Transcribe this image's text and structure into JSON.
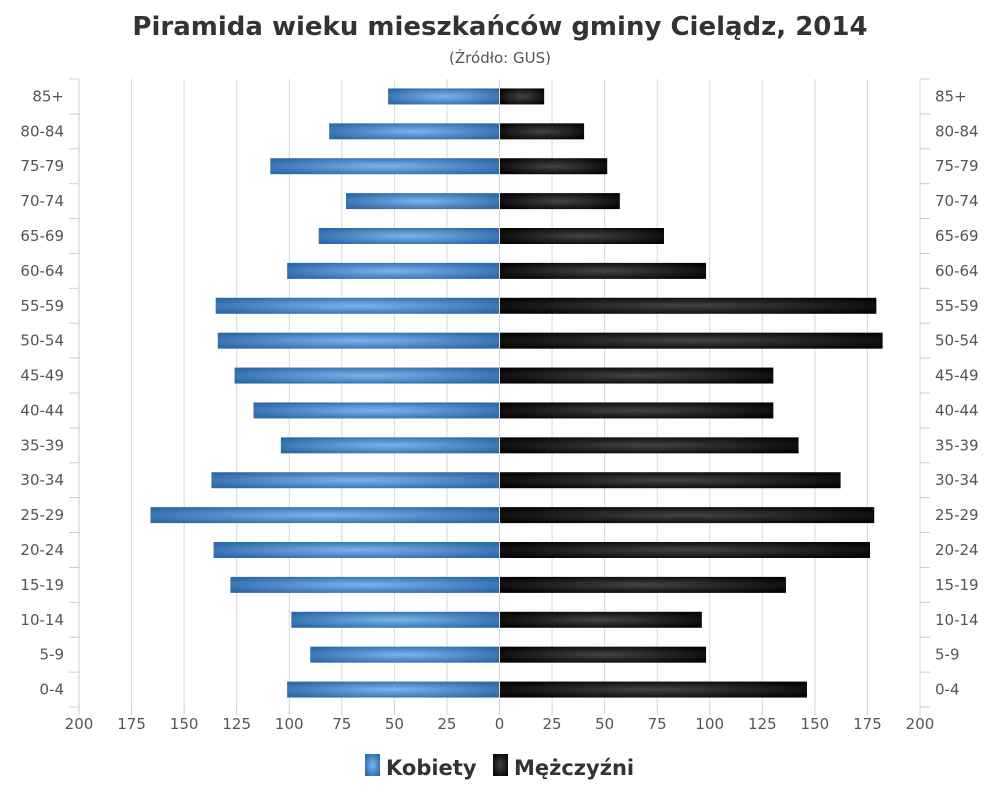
{
  "chart_data": {
    "type": "bar",
    "orientation": "horizontal-pyramid",
    "title": "Piramida wieku mieszkańców gminy Cielądz, 2014",
    "subtitle": "(Źródło: GUS)",
    "categories": [
      "85+",
      "80-84",
      "75-79",
      "70-74",
      "65-69",
      "60-64",
      "55-59",
      "50-54",
      "45-49",
      "40-44",
      "35-39",
      "30-34",
      "25-29",
      "20-24",
      "15-19",
      "10-14",
      "5-9",
      "0-4"
    ],
    "series": [
      {
        "name": "Kobiety",
        "side": "left",
        "color": "#4a8ad0",
        "values": [
          53,
          81,
          109,
          73,
          86,
          101,
          135,
          134,
          126,
          117,
          104,
          137,
          166,
          136,
          128,
          99,
          90,
          101
        ]
      },
      {
        "name": "Mężczyźni",
        "side": "right",
        "color": "#1a1a1a",
        "values": [
          21,
          40,
          51,
          57,
          78,
          98,
          179,
          182,
          130,
          130,
          142,
          162,
          178,
          176,
          136,
          96,
          98,
          146
        ]
      }
    ],
    "xlim": [
      0,
      200
    ],
    "xticks": [
      "200",
      "175",
      "150",
      "125",
      "100",
      "75",
      "50",
      "25",
      "0",
      "25",
      "50",
      "75",
      "100",
      "125",
      "150",
      "175",
      "200"
    ],
    "grid": true,
    "legend": "bottom"
  }
}
